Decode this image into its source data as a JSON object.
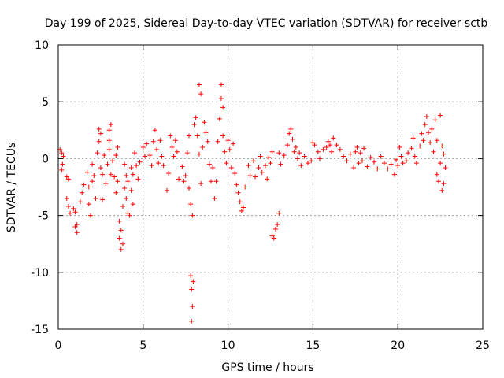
{
  "chart_data": {
    "type": "scatter",
    "title": "Day 199 of 2025, Sidereal Day-to-day VTEC variation (SDTVAR) for receiver sctb",
    "xlabel": "GPS time / hours",
    "ylabel": "SDTVAR / TECUs",
    "xlim": [
      0,
      25
    ],
    "ylim": [
      -15,
      10
    ],
    "xticks": [
      0,
      5,
      10,
      15,
      20,
      25
    ],
    "xtick_labels": [
      "0",
      "5",
      "10",
      "15",
      "20",
      "25"
    ],
    "yticks": [
      -15,
      -10,
      -5,
      0,
      5,
      10
    ],
    "ytick_labels": [
      "-15",
      "-10",
      "-5",
      "0",
      "5",
      "10"
    ],
    "grid": true,
    "marker": "+",
    "color": "#ff0000",
    "series": [
      {
        "name": "SDTVAR",
        "points": [
          [
            0.1,
            0.8
          ],
          [
            0.2,
            0.5
          ],
          [
            0.3,
            0.2
          ],
          [
            0.25,
            -0.5
          ],
          [
            0.2,
            -1.0
          ],
          [
            0.5,
            -1.6
          ],
          [
            0.6,
            -1.8
          ],
          [
            0.5,
            -3.5
          ],
          [
            0.6,
            -4.2
          ],
          [
            0.7,
            -4.8
          ],
          [
            0.9,
            -4.4
          ],
          [
            1.0,
            -4.7
          ],
          [
            1.0,
            -6.0
          ],
          [
            1.1,
            -6.5
          ],
          [
            1.1,
            -5.8
          ],
          [
            1.3,
            -3.8
          ],
          [
            1.4,
            -3.0
          ],
          [
            1.5,
            -2.3
          ],
          [
            1.7,
            -1.2
          ],
          [
            1.8,
            -2.5
          ],
          [
            1.8,
            -4.0
          ],
          [
            1.9,
            -5.0
          ],
          [
            2.0,
            -2.0
          ],
          [
            2.0,
            -0.5
          ],
          [
            2.1,
            -1.5
          ],
          [
            2.2,
            -3.5
          ],
          [
            2.3,
            0.5
          ],
          [
            2.4,
            1.5
          ],
          [
            2.4,
            2.6
          ],
          [
            2.5,
            2.2
          ],
          [
            2.5,
            -0.8
          ],
          [
            2.6,
            -3.6
          ],
          [
            2.6,
            -1.4
          ],
          [
            2.7,
            0.3
          ],
          [
            2.8,
            -2.2
          ],
          [
            2.9,
            -0.5
          ],
          [
            3.0,
            0.8
          ],
          [
            3.0,
            2.5
          ],
          [
            3.1,
            3.0
          ],
          [
            3.0,
            1.6
          ],
          [
            3.1,
            -1.4
          ],
          [
            3.2,
            -0.2
          ],
          [
            3.3,
            -1.6
          ],
          [
            3.4,
            0.3
          ],
          [
            3.4,
            -3.0
          ],
          [
            3.5,
            1.0
          ],
          [
            3.5,
            -2.0
          ],
          [
            3.6,
            -5.5
          ],
          [
            3.6,
            -7.0
          ],
          [
            3.7,
            -8.0
          ],
          [
            3.7,
            -6.3
          ],
          [
            3.8,
            -7.5
          ],
          [
            3.8,
            -4.2
          ],
          [
            3.9,
            -2.6
          ],
          [
            3.9,
            -0.5
          ],
          [
            4.0,
            -1.5
          ],
          [
            4.0,
            -3.5
          ],
          [
            4.1,
            -4.8
          ],
          [
            4.2,
            -5.0
          ],
          [
            4.1,
            -2.0
          ],
          [
            4.3,
            -0.8
          ],
          [
            4.3,
            -2.8
          ],
          [
            4.4,
            -4.0
          ],
          [
            4.4,
            -1.4
          ],
          [
            4.5,
            0.5
          ],
          [
            4.6,
            -0.6
          ],
          [
            4.7,
            -1.8
          ],
          [
            4.8,
            -0.3
          ],
          [
            5.0,
            1.0
          ],
          [
            5.1,
            0.2
          ],
          [
            5.2,
            1.3
          ],
          [
            5.4,
            0.3
          ],
          [
            5.5,
            -0.6
          ],
          [
            5.6,
            1.5
          ],
          [
            5.7,
            2.5
          ],
          [
            5.8,
            0.8
          ],
          [
            5.9,
            -0.4
          ],
          [
            6.0,
            1.6
          ],
          [
            6.1,
            0.2
          ],
          [
            6.2,
            -0.6
          ],
          [
            6.4,
            -2.8
          ],
          [
            6.5,
            -1.3
          ],
          [
            6.6,
            2.0
          ],
          [
            6.7,
            1.0
          ],
          [
            6.8,
            0.2
          ],
          [
            6.9,
            1.6
          ],
          [
            7.0,
            0.6
          ],
          [
            7.1,
            -1.8
          ],
          [
            7.3,
            -0.7
          ],
          [
            7.4,
            -2.0
          ],
          [
            7.5,
            -1.5
          ],
          [
            7.6,
            0.5
          ],
          [
            7.7,
            2.0
          ],
          [
            7.7,
            -2.6
          ],
          [
            7.8,
            -4.0
          ],
          [
            7.8,
            -10.3
          ],
          [
            7.85,
            -11.5
          ],
          [
            7.9,
            -13.0
          ],
          [
            7.85,
            -14.3
          ],
          [
            7.95,
            -10.8
          ],
          [
            7.9,
            -5.0
          ],
          [
            8.0,
            3.0
          ],
          [
            8.1,
            3.6
          ],
          [
            8.2,
            2.0
          ],
          [
            8.3,
            0.4
          ],
          [
            8.3,
            6.5
          ],
          [
            8.4,
            5.7
          ],
          [
            8.4,
            -2.2
          ],
          [
            8.5,
            1.0
          ],
          [
            8.6,
            3.2
          ],
          [
            8.7,
            2.3
          ],
          [
            8.8,
            1.5
          ],
          [
            8.9,
            -0.5
          ],
          [
            9.0,
            -2.0
          ],
          [
            9.1,
            -0.8
          ],
          [
            9.2,
            -3.5
          ],
          [
            9.3,
            -2.0
          ],
          [
            9.4,
            1.5
          ],
          [
            9.5,
            3.5
          ],
          [
            9.6,
            6.5
          ],
          [
            9.6,
            5.3
          ],
          [
            9.7,
            4.5
          ],
          [
            9.7,
            2.0
          ],
          [
            9.8,
            0.6
          ],
          [
            9.9,
            -0.4
          ],
          [
            10.0,
            1.6
          ],
          [
            10.1,
            0.8
          ],
          [
            10.2,
            -0.8
          ],
          [
            10.3,
            1.3
          ],
          [
            10.4,
            -1.3
          ],
          [
            10.5,
            -2.3
          ],
          [
            10.6,
            -3.0
          ],
          [
            10.7,
            -3.8
          ],
          [
            10.8,
            -4.6
          ],
          [
            10.9,
            -4.3
          ],
          [
            11.0,
            -2.5
          ],
          [
            11.2,
            -0.6
          ],
          [
            11.3,
            -1.5
          ],
          [
            11.5,
            -0.2
          ],
          [
            11.6,
            -1.6
          ],
          [
            11.8,
            -0.8
          ],
          [
            11.9,
            0.2
          ],
          [
            12.0,
            -1.2
          ],
          [
            12.2,
            -0.6
          ],
          [
            12.3,
            -1.8
          ],
          [
            12.4,
            0.1
          ],
          [
            12.5,
            -0.4
          ],
          [
            12.6,
            0.6
          ],
          [
            12.6,
            -6.8
          ],
          [
            12.7,
            -7.0
          ],
          [
            12.8,
            -6.2
          ],
          [
            12.9,
            -5.8
          ],
          [
            13.0,
            -4.8
          ],
          [
            13.0,
            0.5
          ],
          [
            13.1,
            -0.5
          ],
          [
            13.3,
            0.3
          ],
          [
            13.5,
            1.2
          ],
          [
            13.6,
            2.2
          ],
          [
            13.7,
            2.6
          ],
          [
            13.8,
            1.7
          ],
          [
            13.9,
            0.6
          ],
          [
            14.0,
            1.0
          ],
          [
            14.1,
            0.0
          ],
          [
            14.2,
            0.5
          ],
          [
            14.3,
            -0.6
          ],
          [
            14.5,
            0.2
          ],
          [
            14.7,
            -0.4
          ],
          [
            14.9,
            -0.2
          ],
          [
            15.0,
            1.4
          ],
          [
            15.1,
            1.2
          ],
          [
            15.3,
            0.6
          ],
          [
            15.4,
            0.0
          ],
          [
            15.6,
            0.8
          ],
          [
            15.8,
            1.0
          ],
          [
            15.9,
            1.5
          ],
          [
            16.0,
            1.2
          ],
          [
            16.1,
            0.6
          ],
          [
            16.2,
            1.8
          ],
          [
            16.4,
            1.2
          ],
          [
            16.6,
            0.8
          ],
          [
            16.8,
            0.2
          ],
          [
            17.0,
            -0.2
          ],
          [
            17.2,
            0.4
          ],
          [
            17.4,
            -0.8
          ],
          [
            17.5,
            0.6
          ],
          [
            17.6,
            1.0
          ],
          [
            17.7,
            -0.4
          ],
          [
            17.8,
            0.5
          ],
          [
            17.9,
            -0.2
          ],
          [
            18.0,
            0.9
          ],
          [
            18.2,
            -0.7
          ],
          [
            18.4,
            0.1
          ],
          [
            18.6,
            -0.3
          ],
          [
            18.8,
            -0.9
          ],
          [
            19.0,
            0.2
          ],
          [
            19.2,
            -0.4
          ],
          [
            19.4,
            -0.9
          ],
          [
            19.6,
            -0.5
          ],
          [
            19.8,
            -1.4
          ],
          [
            19.9,
            -0.1
          ],
          [
            20.0,
            -0.6
          ],
          [
            20.1,
            1.0
          ],
          [
            20.2,
            0.2
          ],
          [
            20.3,
            -0.4
          ],
          [
            20.5,
            -0.2
          ],
          [
            20.6,
            0.5
          ],
          [
            20.8,
            0.9
          ],
          [
            20.9,
            1.8
          ],
          [
            21.0,
            0.2
          ],
          [
            21.1,
            -0.4
          ],
          [
            21.3,
            1.1
          ],
          [
            21.4,
            2.2
          ],
          [
            21.5,
            1.6
          ],
          [
            21.6,
            3.0
          ],
          [
            21.7,
            3.7
          ],
          [
            21.8,
            2.3
          ],
          [
            21.9,
            1.4
          ],
          [
            22.0,
            2.6
          ],
          [
            22.1,
            0.6
          ],
          [
            22.2,
            3.4
          ],
          [
            22.3,
            -1.4
          ],
          [
            22.3,
            1.6
          ],
          [
            22.4,
            -2.0
          ],
          [
            22.5,
            -0.4
          ],
          [
            22.5,
            3.8
          ],
          [
            22.6,
            -2.8
          ],
          [
            22.6,
            1.1
          ],
          [
            22.7,
            0.4
          ],
          [
            22.7,
            -2.2
          ],
          [
            22.8,
            -0.8
          ]
        ]
      }
    ]
  }
}
